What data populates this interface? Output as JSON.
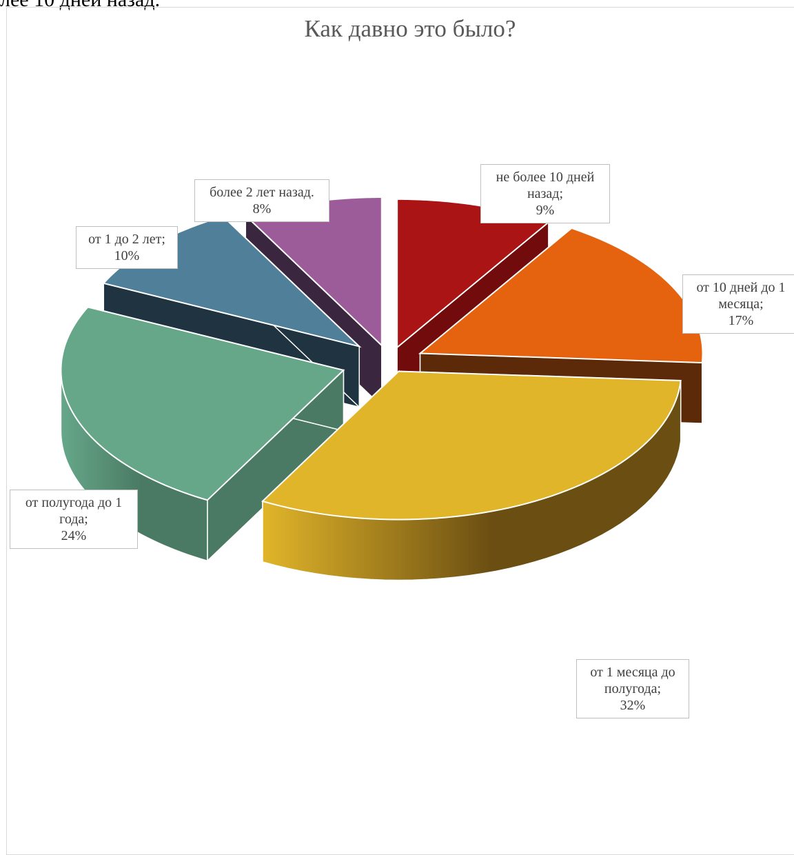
{
  "page": {
    "top_text": "лее 10 дней назад."
  },
  "chart_data": {
    "type": "pie",
    "title": "Как давно это было?",
    "style": "3d-exploded",
    "slices": [
      {
        "label": "не более 10 дней назад",
        "label_lines": [
          "не более 10 дней",
          "назад;"
        ],
        "value": 9,
        "value_text": "9%",
        "color": "#ab1414",
        "side_color": "#720c0c"
      },
      {
        "label": "от 10 дней до 1 месяца",
        "label_lines": [
          "от 10 дней до 1",
          "месяца;"
        ],
        "value": 17,
        "value_text": "17%",
        "color": "#e5620f",
        "side_color": "#5c2a08"
      },
      {
        "label": "от 1 месяца до полугода",
        "label_lines": [
          "от 1 месяца до",
          "полугода;"
        ],
        "value": 32,
        "value_text": "32%",
        "color": "#e1b52a",
        "side_color": "#6a4e12"
      },
      {
        "label": "от полугода до 1 года",
        "label_lines": [
          "от полугода до 1",
          "года;"
        ],
        "value": 24,
        "value_text": "24%",
        "color": "#66a78a",
        "side_color": "#4a7a63"
      },
      {
        "label": "от 1 до 2 лет",
        "label_lines": [
          "от 1 до 2 лет;"
        ],
        "value": 10,
        "value_text": "10%",
        "color": "#4f7f99",
        "side_color": "#1f3340"
      },
      {
        "label": "более 2 лет назад.",
        "label_lines": [
          "более 2 лет назад."
        ],
        "value": 8,
        "value_text": "8%",
        "color": "#9c5c9a",
        "side_color": "#3b2640"
      }
    ]
  }
}
